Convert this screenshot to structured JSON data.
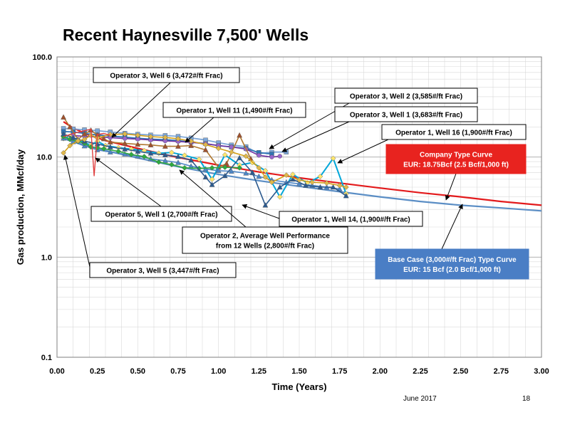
{
  "slide": {
    "title": "Recent Haynesville 7,500' Wells",
    "footer_date": "June 2017",
    "footer_page": "18"
  },
  "chart_data": {
    "type": "line",
    "title": "Recent Haynesville 7,500' Wells",
    "xlabel": "Time (Years)",
    "ylabel": "Gas production, MMcf/day",
    "xlim": [
      0,
      3
    ],
    "ylim": [
      0.1,
      100
    ],
    "yscale": "log",
    "grid": true,
    "x_ticks": [
      "0.00",
      "0.25",
      "0.50",
      "0.75",
      "1.00",
      "1.25",
      "1.50",
      "1.75",
      "2.00",
      "2.25",
      "2.50",
      "2.75",
      "3.00"
    ],
    "y_ticks": [
      "0.1",
      "1.0",
      "10.0",
      "100.0"
    ],
    "series": [
      {
        "color": "#E31A1C",
        "width": 2.2,
        "marker": "none",
        "x": [
          0.04,
          0.1,
          0.2,
          0.3,
          0.5,
          0.75,
          1.0,
          1.25,
          1.5,
          1.75,
          2.0,
          2.25,
          2.5,
          2.75,
          3.0
        ],
        "y": [
          22.5,
          19.5,
          16.5,
          14.6,
          12.2,
          9.9,
          8.3,
          7.1,
          6.2,
          5.5,
          4.9,
          4.4,
          4.0,
          3.6,
          3.3
        ]
      },
      {
        "color": "#5B8EC5",
        "width": 2.2,
        "marker": "none",
        "x": [
          0.04,
          0.1,
          0.2,
          0.3,
          0.5,
          0.75,
          1.0,
          1.25,
          1.5,
          1.75,
          2.0,
          2.25,
          2.5,
          2.75,
          3.0
        ],
        "y": [
          15.3,
          14.2,
          12.8,
          11.6,
          9.8,
          8.0,
          6.7,
          5.8,
          5.1,
          4.5,
          4.0,
          3.6,
          3.3,
          3.1,
          2.9
        ]
      },
      {
        "color": "#7DA7D9",
        "width": 1.8,
        "marker": "square",
        "marker_color": "#7DA7D9",
        "x": [
          0.04,
          0.1,
          0.17,
          0.25,
          0.33,
          0.42,
          0.5,
          0.58,
          0.67,
          0.75,
          0.83,
          0.92,
          1.0,
          1.08,
          1.17,
          1.25,
          1.33,
          1.42
        ],
        "y": [
          19.3,
          19.1,
          18.7,
          18.3,
          17.8,
          17.3,
          16.9,
          16.6,
          16.4,
          16.1,
          15.5,
          14.8,
          13.9,
          13.2,
          12.7,
          10.8,
          11.2,
          11.2
        ]
      },
      {
        "color": "#2F75B5",
        "width": 1.8,
        "marker": "square",
        "marker_color": "#2F75B5",
        "x": [
          0.04,
          0.1,
          0.17,
          0.25,
          0.33,
          0.42,
          0.5,
          0.58,
          0.67,
          0.75,
          0.83,
          0.92,
          1.0,
          1.08,
          1.17,
          1.25,
          1.33
        ],
        "y": [
          18.0,
          17.8,
          17.2,
          16.6,
          16.2,
          15.8,
          15.4,
          15.1,
          14.9,
          14.6,
          14.1,
          13.6,
          13.0,
          12.6,
          12.2,
          11.1,
          10.7
        ]
      },
      {
        "color": "#7030A0",
        "width": 1.6,
        "marker": "circle",
        "marker_color": "#9966CC",
        "x": [
          0.04,
          0.1,
          0.17,
          0.25,
          0.33,
          0.42,
          0.5,
          0.58,
          0.67,
          0.75,
          0.83,
          0.92,
          1.0,
          1.08,
          1.17,
          1.25,
          1.33,
          1.38
        ],
        "y": [
          16.3,
          16.4,
          16.1,
          15.9,
          15.6,
          15.3,
          15.1,
          14.8,
          14.5,
          14.3,
          14.0,
          13.6,
          13.0,
          12.6,
          12.0,
          10.4,
          10.0,
          10.2
        ]
      },
      {
        "color": "#B07830",
        "width": 1.6,
        "marker": "triangle",
        "marker_color": "#A0522D",
        "x": [
          0.04,
          0.08,
          0.13,
          0.17,
          0.21,
          0.25,
          0.29,
          0.33,
          0.42,
          0.5,
          0.58,
          0.67,
          0.75,
          0.83,
          0.92,
          1.0,
          1.05,
          1.13,
          1.2
        ],
        "y": [
          25.0,
          20.0,
          15.0,
          17.0,
          18.5,
          16.6,
          15.2,
          14.1,
          13.7,
          13.4,
          13.2,
          12.8,
          12.8,
          13.0,
          11.8,
          7.9,
          8.6,
          16.5,
          9.6
        ]
      },
      {
        "color": "#00A7D9",
        "width": 2.0,
        "marker": "diamond",
        "marker_color": "#FFE66D",
        "x": [
          0.04,
          0.08,
          0.13,
          0.17,
          0.21,
          0.25,
          0.3,
          0.38,
          0.46,
          0.54,
          0.63,
          0.71,
          0.79,
          0.88,
          0.96,
          1.04,
          1.13,
          1.21,
          1.29,
          1.38,
          1.46,
          1.55,
          1.63,
          1.71,
          1.79
        ],
        "y": [
          15.3,
          16.1,
          14.7,
          14.0,
          13.1,
          14.4,
          13.0,
          12.4,
          12.0,
          11.6,
          10.9,
          11.1,
          10.4,
          9.5,
          6.0,
          10.5,
          8.3,
          8.8,
          7.3,
          4.0,
          6.7,
          5.5,
          6.4,
          9.7,
          4.3
        ]
      },
      {
        "color": "#4C86C6",
        "width": 1.6,
        "marker": "triangle",
        "marker_color": "#4C86C6",
        "x": [
          0.04,
          0.1,
          0.17,
          0.25,
          0.33,
          0.42,
          0.5,
          0.58,
          0.67,
          0.75,
          0.83,
          0.92,
          1.0,
          1.08,
          1.17,
          1.25,
          1.33,
          1.42,
          1.5,
          1.58,
          1.67,
          1.75
        ],
        "y": [
          15.4,
          14.2,
          12.9,
          11.8,
          11.2,
          10.7,
          10.2,
          9.6,
          9.2,
          8.8,
          8.1,
          7.6,
          7.3,
          7.2,
          6.9,
          6.4,
          5.9,
          5.6,
          5.4,
          5.2,
          5.0,
          4.8
        ]
      },
      {
        "color": "#2EAA3F",
        "width": 1.6,
        "marker": "diamond",
        "marker_color": "#2EAA3F",
        "x": [
          0.04,
          0.08,
          0.13,
          0.17,
          0.21,
          0.25,
          0.29,
          0.38,
          0.46,
          0.54,
          0.63,
          0.71,
          0.79,
          0.88,
          0.96,
          1.04,
          1.13
        ],
        "y": [
          16.0,
          15.0,
          14.3,
          13.7,
          12.6,
          12.4,
          12.1,
          11.4,
          10.6,
          10.1,
          8.9,
          8.4,
          7.8,
          7.7,
          7.8,
          7.9,
          7.8
        ]
      },
      {
        "color": "#2C5A8E",
        "width": 1.6,
        "marker": "triangle",
        "marker_color": "#2C5A8E",
        "x": [
          0.04,
          0.1,
          0.17,
          0.25,
          0.33,
          0.42,
          0.5,
          0.58,
          0.67,
          0.75,
          0.83,
          0.92,
          0.96,
          1.04,
          1.13,
          1.21,
          1.29,
          1.38,
          1.46,
          1.54,
          1.63,
          1.71,
          1.79
        ],
        "y": [
          17.0,
          15.6,
          14.4,
          13.5,
          12.6,
          12.0,
          11.4,
          10.9,
          10.5,
          10.1,
          9.3,
          6.3,
          5.3,
          6.5,
          9.8,
          7.0,
          3.3,
          5.0,
          6.0,
          5.2,
          5.0,
          5.0,
          4.1
        ]
      },
      {
        "color": "#D4A017",
        "width": 1.6,
        "marker": "diamond",
        "marker_color": "#E0B84A",
        "x": [
          0.04,
          0.08,
          0.13,
          0.17,
          0.21,
          0.25,
          0.33,
          0.42,
          0.5,
          0.58,
          0.67,
          0.75,
          0.83,
          0.92,
          1.0,
          1.08,
          1.17,
          1.25,
          1.29,
          1.33,
          1.42,
          1.5,
          1.58,
          1.67,
          1.75,
          1.79
        ],
        "y": [
          11.0,
          13.0,
          14.5,
          15.0,
          16.5,
          15.5,
          16.8,
          17.0,
          16.5,
          16.0,
          15.7,
          15.2,
          14.4,
          13.3,
          12.2,
          11.2,
          10.2,
          7.8,
          6.3,
          5.6,
          6.6,
          5.9,
          5.6,
          5.5,
          5.2,
          5.0
        ]
      },
      {
        "color": "#E04040",
        "width": 1.4,
        "marker": "none",
        "x": [
          0.04,
          0.1,
          0.17,
          0.21,
          0.23,
          0.25,
          0.29,
          0.33
        ],
        "y": [
          16.0,
          17.2,
          18.3,
          19.0,
          6.5,
          16.8,
          17.2,
          16.5
        ]
      }
    ],
    "callouts": [
      {
        "text": "Operator 3, Well 6 (3,472#/ft Frac)"
      },
      {
        "text": "Operator 1, Well 11 (1,490#/ft Frac)"
      },
      {
        "text": "Operator 3, Well 2 (3,585#/ft Frac)"
      },
      {
        "text": "Operator 3, Well 1 (3,683#/ft Frac)"
      },
      {
        "text": "Operator 1, Well 16 (1,900#/ft Frac)"
      },
      {
        "text": "Operator 5, Well 1 (2,700#/ft Frac)"
      },
      {
        "text": "Operator 1, Well 14, (1,900#/ft Frac)"
      },
      {
        "text": "Operator 2, Average Well Performance",
        "text2": "from 12 Wells (2,800#/ft Frac)"
      },
      {
        "text": "Operator 3, Well 5 (3,447#/ft Frac)"
      },
      {
        "text": "Company Type Curve",
        "text2": "EUR: 18.75Bcf (2.5 Bcf/1,000 ft)",
        "fill": "#E8231F",
        "text_color": "#FFFFFF"
      },
      {
        "text": "Base Case (3,000#/ft Frac) Type Curve",
        "text2": "EUR: 15 Bcf  (2.0 Bcf/1,000 ft)",
        "fill": "#4A7EC5",
        "text_color": "#FFFFFF"
      }
    ]
  }
}
